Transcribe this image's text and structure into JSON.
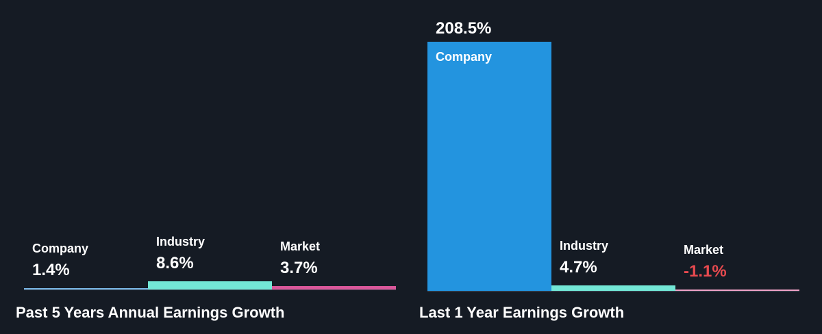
{
  "colors": {
    "background": "#151b24",
    "company": "#2394df",
    "company_baseline": "#7ab8e8",
    "industry": "#73e7d6",
    "market": "#d9579a",
    "market_light": "#f0a3c8",
    "negative_text": "#e84a4f",
    "text": "#ffffff"
  },
  "chart_data": [
    {
      "type": "bar",
      "title": "Past 5 Years Annual Earnings Growth",
      "unit": "%",
      "categories": [
        "Company",
        "Industry",
        "Market"
      ],
      "values": [
        1.4,
        8.6,
        3.7
      ],
      "value_labels": [
        "1.4%",
        "8.6%",
        "3.7%"
      ]
    },
    {
      "type": "bar",
      "title": "Last 1 Year Earnings Growth",
      "unit": "%",
      "categories": [
        "Company",
        "Industry",
        "Market"
      ],
      "values": [
        208.5,
        4.7,
        -1.1
      ],
      "value_labels": [
        "208.5%",
        "4.7%",
        "-1.1%"
      ]
    }
  ]
}
